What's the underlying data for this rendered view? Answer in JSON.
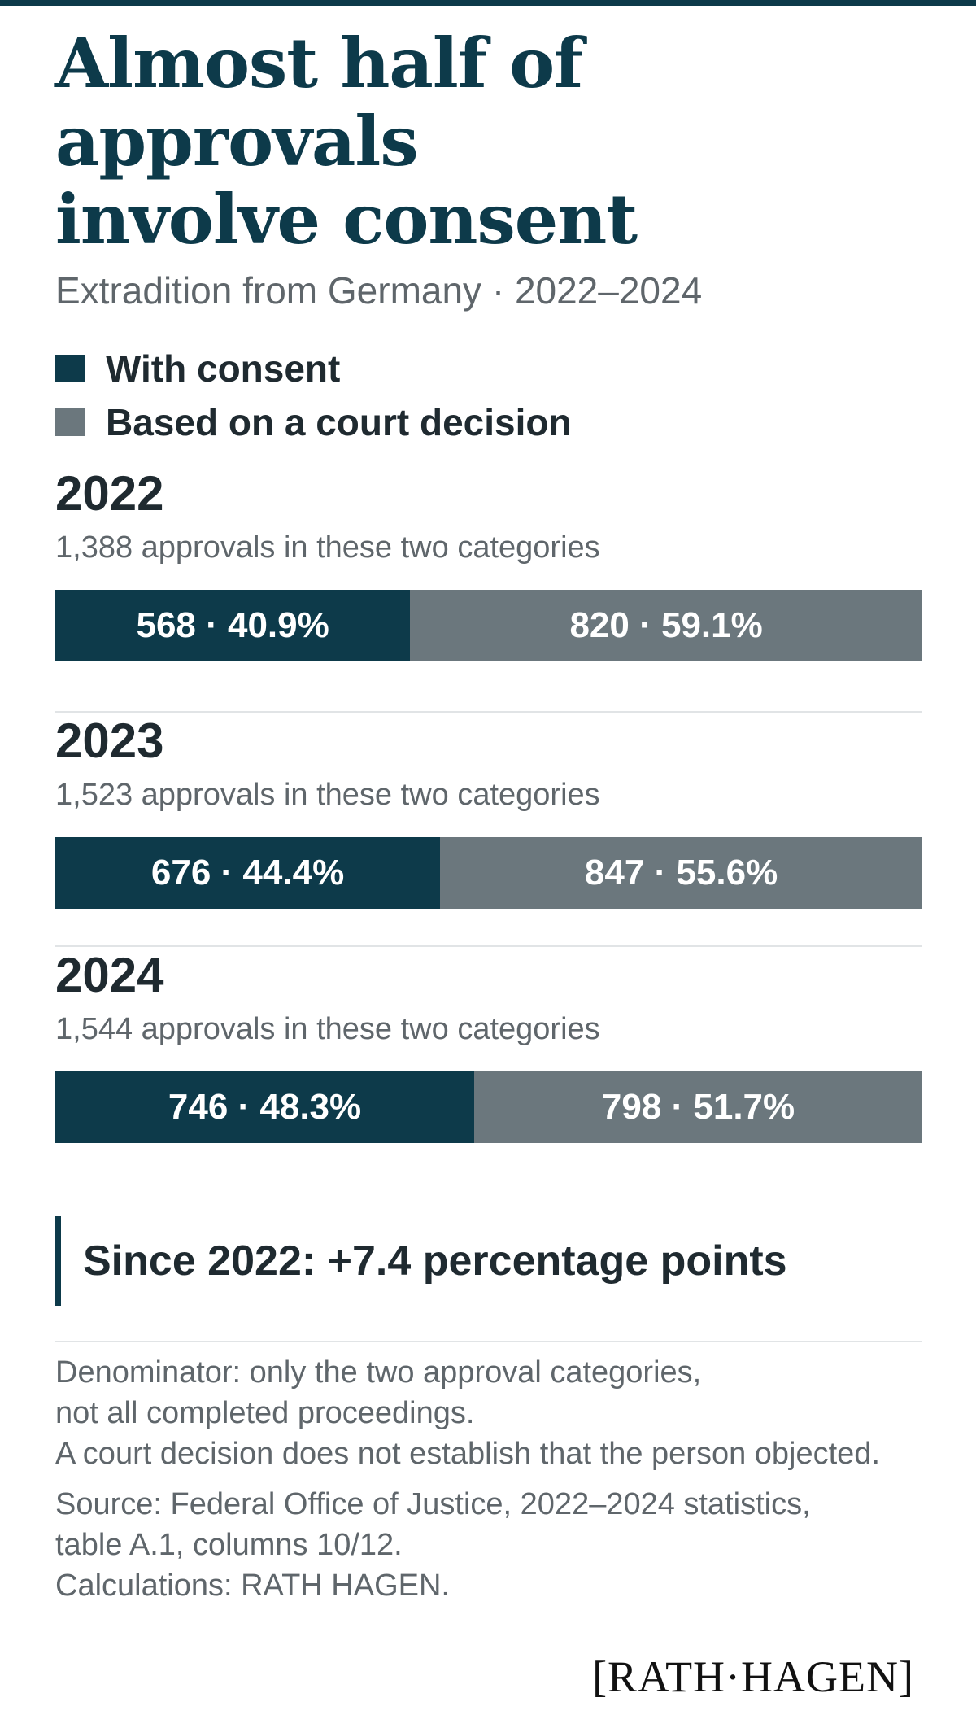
{
  "title_line1": "Almost half of approvals",
  "title_line2": "involve consent",
  "subtitle": "Extradition from Germany · 2022–2024",
  "legend": [
    {
      "label": "With consent",
      "color": "#0d3a4a"
    },
    {
      "label": "Based on a court decision",
      "color": "#6b777d"
    }
  ],
  "chart_data": {
    "type": "bar",
    "orientation": "horizontal-stacked-100",
    "categories": [
      "2022",
      "2023",
      "2024"
    ],
    "totals_text": [
      "1,388 approvals in these two categories",
      "1,523 approvals in these two categories",
      "1,544 approvals in these two categories"
    ],
    "totals": [
      1388,
      1523,
      1544
    ],
    "series": [
      {
        "name": "With consent",
        "color": "#0d3a4a",
        "values": [
          568,
          676,
          746
        ],
        "percent": [
          40.9,
          44.4,
          48.3
        ],
        "labels": [
          "568 · 40.9%",
          "676 · 44.4%",
          "746 · 48.3%"
        ]
      },
      {
        "name": "Based on a court decision",
        "color": "#6b777d",
        "values": [
          820,
          847,
          798
        ],
        "percent": [
          59.1,
          55.6,
          51.7
        ],
        "labels": [
          "820 · 59.1%",
          "847 · 55.6%",
          "798 · 51.7%"
        ]
      }
    ]
  },
  "callout": "Since 2022: +7.4 percentage points",
  "notes": [
    "Denominator: only the two approval categories,",
    "not all completed proceedings.",
    "A court decision does not establish that the person objected."
  ],
  "source": [
    "Source: Federal Office of Justice, 2022–2024 statistics,",
    "table A.1, columns 10/12.",
    "Calculations: RATH HAGEN."
  ],
  "logo": "[RATH·HAGEN]"
}
